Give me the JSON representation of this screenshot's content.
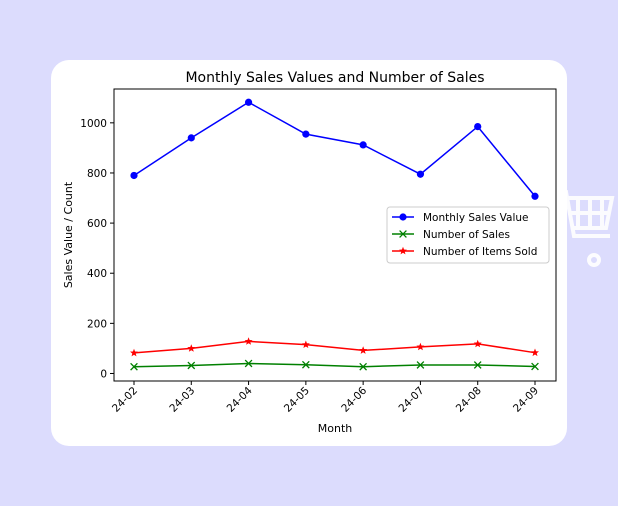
{
  "chart_data": {
    "type": "line",
    "title": "Monthly Sales Values and Number of Sales",
    "xlabel": "Month",
    "ylabel": "Sales Value / Count",
    "categories": [
      "24-02",
      "24-03",
      "24-04",
      "24-05",
      "24-06",
      "24-07",
      "24-08",
      "24-09"
    ],
    "yticks": [
      0,
      200,
      400,
      600,
      800,
      1000
    ],
    "ylim": [
      -30,
      1135
    ],
    "grid": false,
    "legend_position": "center-right",
    "series": [
      {
        "name": "Monthly Sales Value",
        "color": "#0000ff",
        "marker": "circle",
        "values": [
          790,
          940,
          1082,
          955,
          912,
          795,
          985,
          707
        ]
      },
      {
        "name": "Number of Sales",
        "color": "#008000",
        "marker": "x",
        "values": [
          27,
          32,
          40,
          35,
          27,
          34,
          34,
          28
        ]
      },
      {
        "name": "Number of Items Sold",
        "color": "#ff0000",
        "marker": "star",
        "values": [
          82,
          100,
          128,
          115,
          92,
          106,
          118,
          83
        ]
      }
    ]
  },
  "decor": {
    "watermark_icon": "shopping-cart-icon"
  }
}
